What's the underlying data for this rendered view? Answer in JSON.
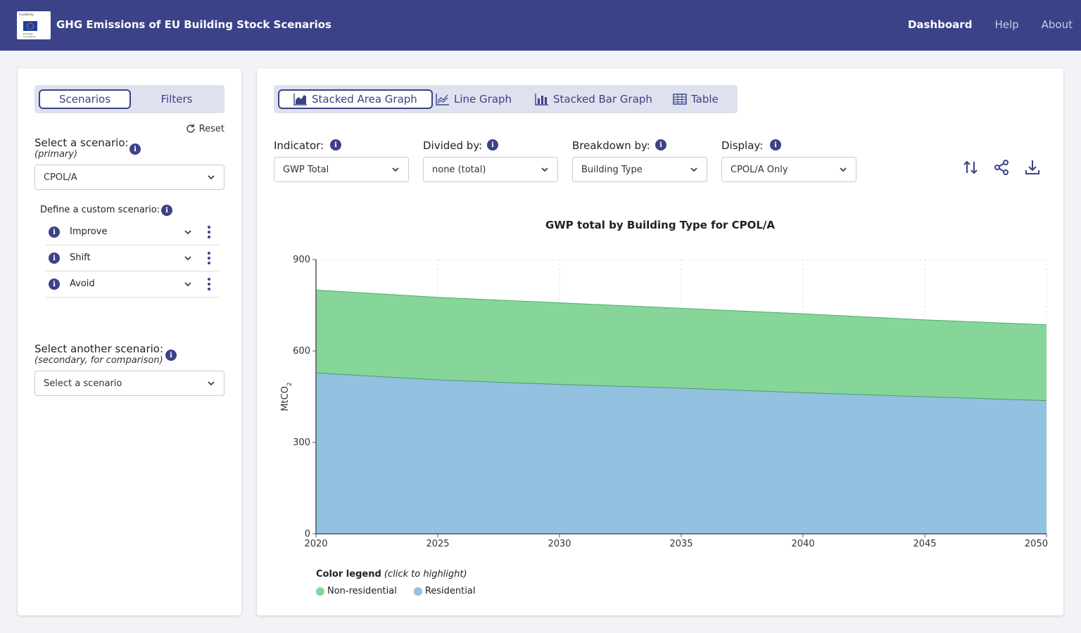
{
  "header": {
    "logo_funded": "Funded by",
    "logo_ec": "European Commission",
    "title": "GHG Emissions of EU Building Stock Scenarios",
    "nav": [
      "Dashboard",
      "Help",
      "About"
    ]
  },
  "sidebar": {
    "tabs": [
      "Scenarios",
      "Filters"
    ],
    "reset_label": "Reset",
    "primary_label": "Select a scenario:",
    "primary_sub": "(primary)",
    "primary_value": "CPOL/A",
    "custom_label": "Define a custom scenario:",
    "custom_items": [
      "Improve",
      "Shift",
      "Avoid"
    ],
    "secondary_label": "Select another scenario:",
    "secondary_sub": "(secondary, for comparison)",
    "secondary_placeholder": "Select a scenario"
  },
  "main": {
    "tabs": [
      "Stacked Area Graph",
      "Line Graph",
      "Stacked Bar Graph",
      "Table"
    ],
    "controls": [
      {
        "label": "Indicator:",
        "value": "GWP Total"
      },
      {
        "label": "Divided by:",
        "value": "none (total)"
      },
      {
        "label": "Breakdown by:",
        "value": "Building Type"
      },
      {
        "label": "Display:",
        "value": "CPOL/A Only"
      }
    ],
    "legend_title": "Color legend",
    "legend_hint": "(click to highlight)"
  },
  "colors": {
    "header_bg": "#3b4287",
    "non_residential": "#86d69a",
    "residential": "#92c2e0"
  },
  "chart_data": {
    "type": "area",
    "title": "GWP total by Building Type for CPOL/A",
    "ylabel": "MtCO",
    "ylabel_sub": "2",
    "xlabel": "",
    "x": [
      2020,
      2025,
      2030,
      2035,
      2040,
      2045,
      2050
    ],
    "xlim": [
      2020,
      2050
    ],
    "ylim": [
      0,
      900
    ],
    "yticks": [
      0,
      300,
      600,
      900
    ],
    "grid": true,
    "legend_position": "bottom-left",
    "stacked": true,
    "series": [
      {
        "name": "Residential",
        "values": [
          528,
          505,
          490,
          478,
          463,
          450,
          437
        ]
      },
      {
        "name": "Non-residential",
        "values": [
          272,
          271,
          268,
          262,
          259,
          252,
          249
        ]
      }
    ]
  }
}
